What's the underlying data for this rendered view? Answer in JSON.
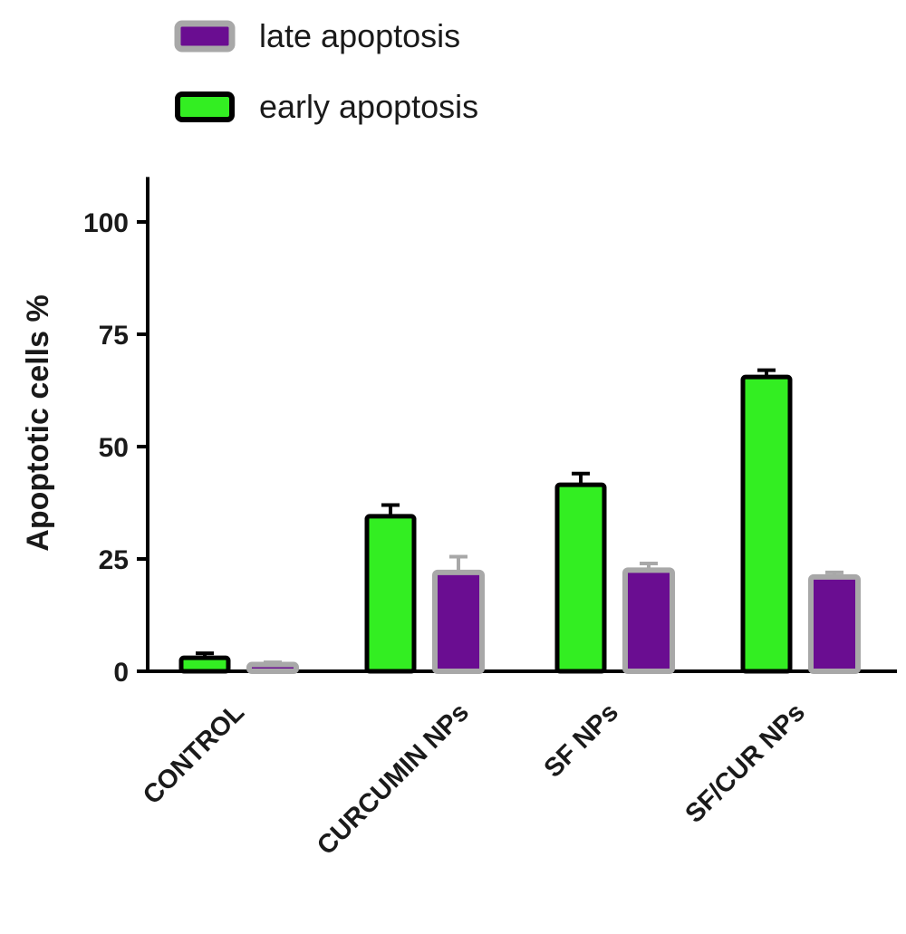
{
  "chart_data": {
    "type": "bar",
    "title": "",
    "xlabel": "",
    "ylabel": "Apoptotic cells %",
    "ylim": [
      0,
      110
    ],
    "yticks": [
      0,
      25,
      50,
      75,
      100
    ],
    "categories": [
      "CONTROL",
      "CURCUMIN NPs",
      "SF NPs",
      "SF/CUR NPs"
    ],
    "series": [
      {
        "name": "early apoptosis",
        "values": [
          3,
          34.5,
          41.5,
          65.5
        ],
        "errors": [
          1,
          2.5,
          2.5,
          1.5
        ],
        "fill": "#33ee22",
        "stroke": "#000000"
      },
      {
        "name": "late apoptosis",
        "values": [
          1.5,
          22,
          22.5,
          21
        ],
        "errors": [
          0.5,
          3.5,
          1.5,
          1
        ],
        "fill": "#6a0d91",
        "stroke": "#a8a8a8"
      }
    ],
    "legend_order": [
      "late apoptosis",
      "early apoptosis"
    ],
    "legend_position": "top-left",
    "grid": false
  }
}
